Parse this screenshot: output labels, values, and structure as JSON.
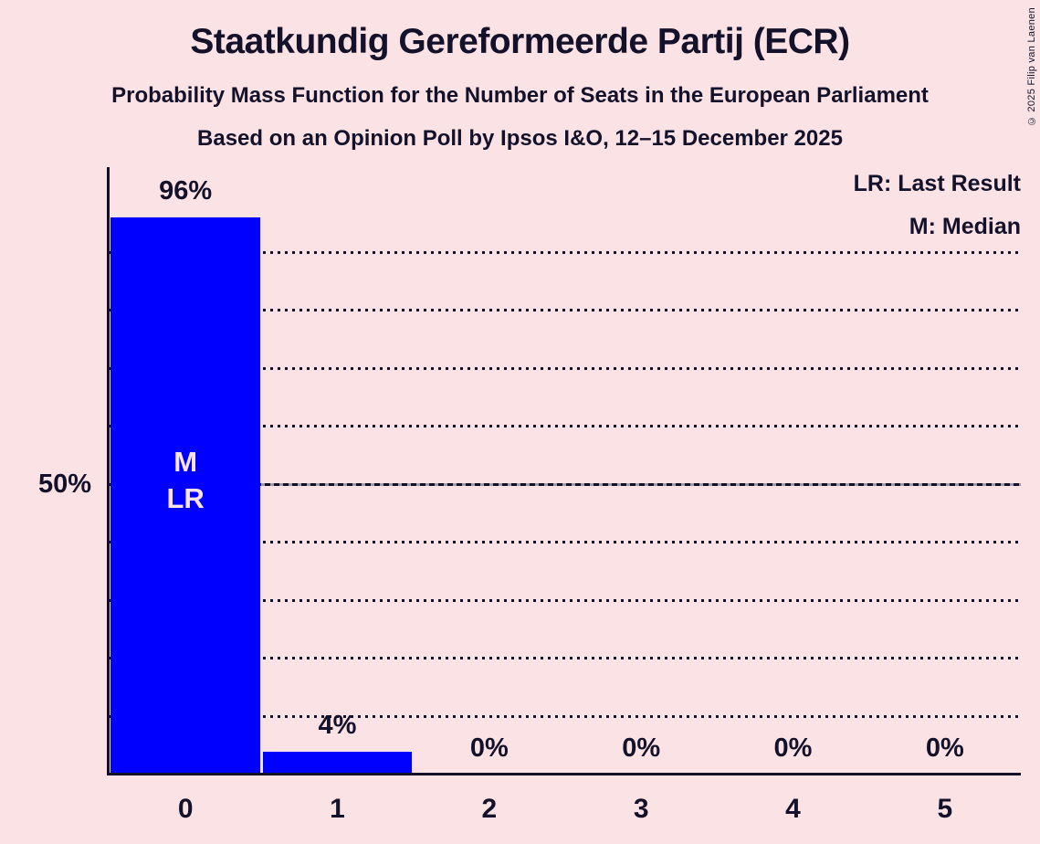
{
  "chart_data": {
    "type": "bar",
    "title": "Staatkundig Gereformeerde Partij (ECR)",
    "subtitle": "Probability Mass Function for the Number of Seats in the European Parliament",
    "poll_line": "Based on an Opinion Poll by Ipsos I&O, 12–15 December 2025",
    "categories": [
      "0",
      "1",
      "2",
      "3",
      "4",
      "5"
    ],
    "values": [
      96,
      4,
      0,
      0,
      0,
      0
    ],
    "bar_labels": [
      "96%",
      "4%",
      "0%",
      "0%",
      "0%",
      "0%"
    ],
    "xlabel": "",
    "ylabel": "",
    "ylim": [
      0,
      100
    ],
    "ytick_label": "50%",
    "ytick_value": 50,
    "gridlines_pct": [
      10,
      20,
      30,
      40,
      50,
      60,
      70,
      80,
      90
    ],
    "solid_gridline_pct": 50,
    "legend": {
      "lr": "LR: Last Result",
      "m": "M: Median"
    },
    "bar_annotations": [
      {
        "bar_index": 0,
        "lines": [
          "M",
          "LR"
        ]
      }
    ],
    "copyright": "© 2025 Filip van Laenen",
    "colors": {
      "background": "#fbe3e5",
      "bar": "#0000ff",
      "ink": "#14122b",
      "annotation_text": "#fbe3e5"
    }
  }
}
